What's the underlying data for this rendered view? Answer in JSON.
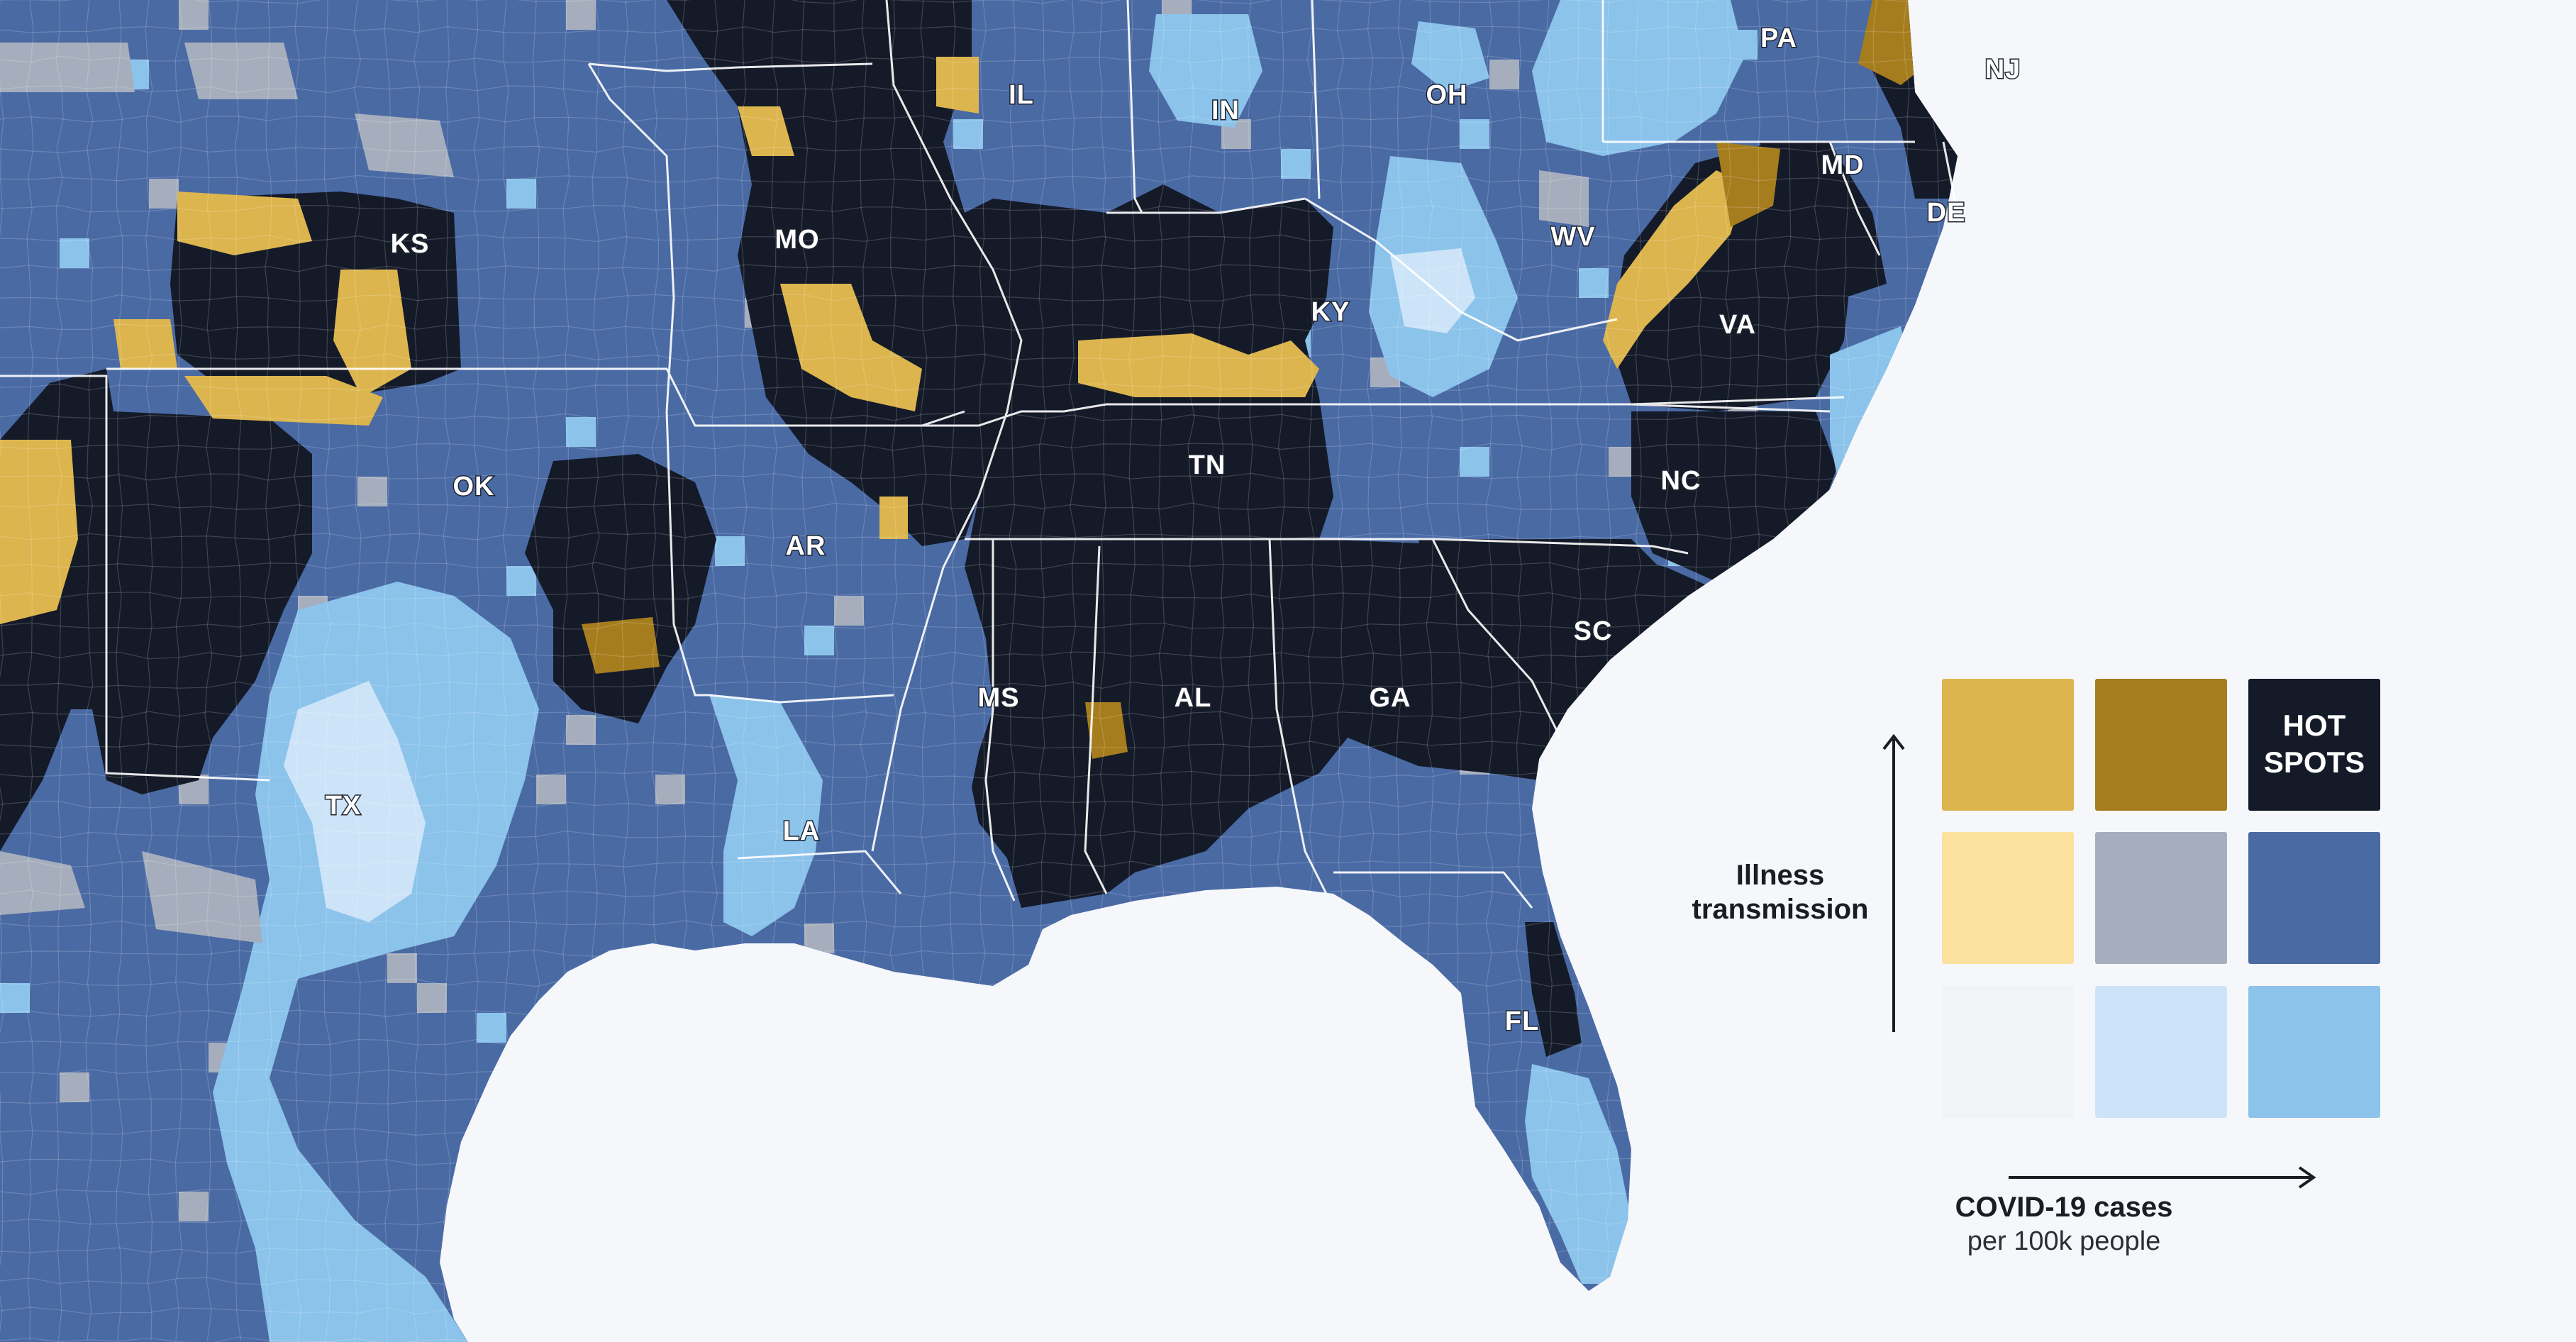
{
  "states": [
    {
      "abbr": "PA"
    },
    {
      "abbr": "NJ"
    },
    {
      "abbr": "IL"
    },
    {
      "abbr": "IN"
    },
    {
      "abbr": "OH"
    },
    {
      "abbr": "MD"
    },
    {
      "abbr": "DE"
    },
    {
      "abbr": "KS"
    },
    {
      "abbr": "MO"
    },
    {
      "abbr": "WV"
    },
    {
      "abbr": "KY"
    },
    {
      "abbr": "VA"
    },
    {
      "abbr": "TN"
    },
    {
      "abbr": "NC"
    },
    {
      "abbr": "OK"
    },
    {
      "abbr": "AR"
    },
    {
      "abbr": "SC"
    },
    {
      "abbr": "MS"
    },
    {
      "abbr": "AL"
    },
    {
      "abbr": "GA"
    },
    {
      "abbr": "TX"
    },
    {
      "abbr": "LA"
    },
    {
      "abbr": "FL"
    }
  ],
  "legend": {
    "hot_spots_line1": "HOT",
    "hot_spots_line2": "SPOTS",
    "y_axis_line1": "Illness",
    "y_axis_line2": "transmission",
    "x_axis_main": "COVID-19 cases",
    "x_axis_sub": "per 100k people",
    "grid_colors": [
      [
        "#dcb54e",
        "#a57d1e",
        "#141a28"
      ],
      [
        "#fbe19e",
        "#a6aebd",
        "#4a6aa4"
      ],
      [
        "#f2f3f6",
        "#cde4f8",
        "#8bc3eb"
      ]
    ]
  },
  "colors": {
    "ocean": "#f6f7fb",
    "hotspot": "#141a28",
    "mid_blue": "#4a6aa4",
    "light_blue": "#8bc3eb",
    "pale_blue": "#cde4f8",
    "gold": "#dcb54e",
    "dark_gold": "#a57d1e",
    "gray": "#a6aebd",
    "border": "#ffffff"
  }
}
